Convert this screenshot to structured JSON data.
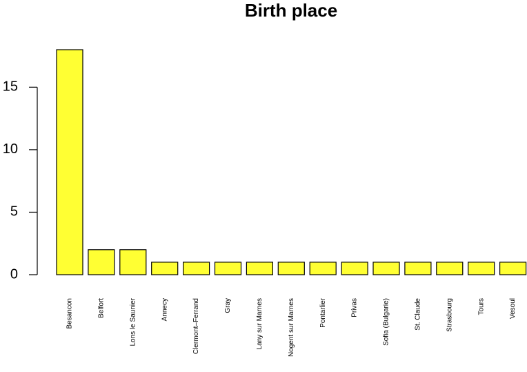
{
  "chart_data": {
    "type": "bar",
    "title": "Birth place",
    "xlabel": "",
    "ylabel": "",
    "categories": [
      "Besancon",
      "Belfort",
      "Lons le Saunier",
      "Annecy",
      "Clermont–Ferrand",
      "Gray",
      "Lany sur Marnes",
      "Nogent sur Marnes",
      "Pontarlier",
      "Privas",
      "Sofia (Bulgarie)",
      "St. Claude",
      "Strasbourg",
      "Tours",
      "Vesoul"
    ],
    "values": [
      18,
      2,
      2,
      1,
      1,
      1,
      1,
      1,
      1,
      1,
      1,
      1,
      1,
      1,
      1
    ],
    "ylim": [
      0,
      18
    ],
    "yticks": [
      0,
      5,
      10,
      15
    ],
    "ytick_labels": [
      "0",
      "5",
      "10",
      "15"
    ],
    "bar_color": "#ffff33",
    "grid": false
  }
}
